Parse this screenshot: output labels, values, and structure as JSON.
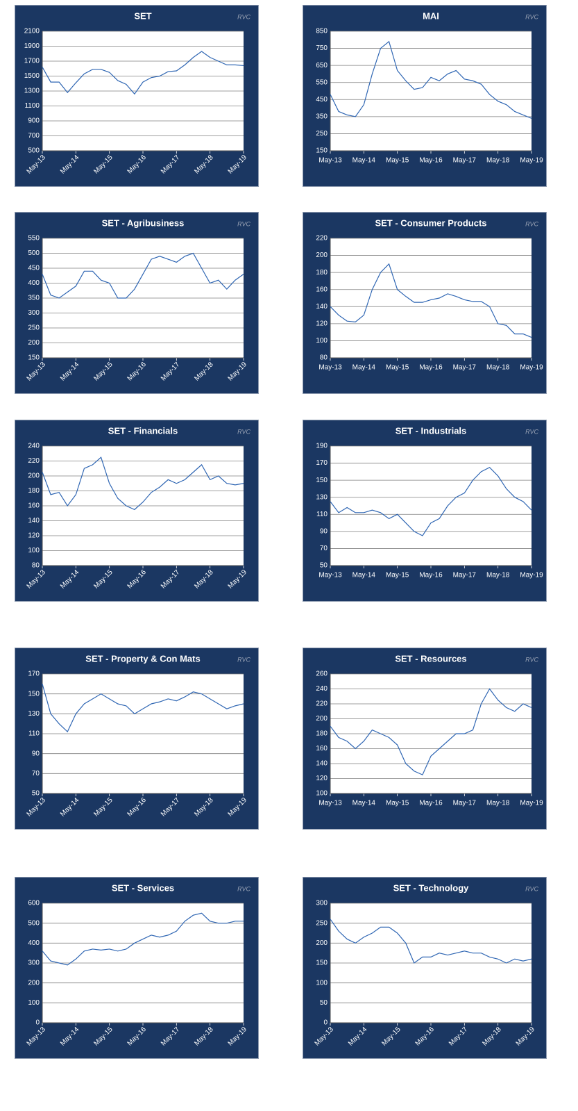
{
  "chart_data": [
    {
      "type": "line",
      "title": "SET",
      "source": "RVC",
      "rotate_xticks": true,
      "x": [
        "May-13",
        "Aug-13",
        "Nov-13",
        "Feb-14",
        "May-14",
        "Aug-14",
        "Nov-14",
        "Feb-15",
        "May-15",
        "Aug-15",
        "Nov-15",
        "Feb-16",
        "May-16",
        "Aug-16",
        "Nov-16",
        "Feb-17",
        "May-17",
        "Aug-17",
        "Nov-17",
        "Feb-18",
        "May-18",
        "Aug-18",
        "Nov-18",
        "Feb-19",
        "May-19"
      ],
      "xticks": [
        "May-13",
        "May-14",
        "May-15",
        "May-16",
        "May-17",
        "May-18",
        "May-19"
      ],
      "series": [
        {
          "name": "SET",
          "color": "#2f66b3",
          "values": [
            1620,
            1420,
            1420,
            1280,
            1410,
            1530,
            1590,
            1590,
            1550,
            1440,
            1390,
            1260,
            1420,
            1480,
            1500,
            1560,
            1570,
            1650,
            1750,
            1830,
            1750,
            1700,
            1650,
            1650,
            1640
          ]
        }
      ],
      "ylim": [
        500,
        2100
      ],
      "yticks": [
        500,
        700,
        900,
        1100,
        1300,
        1500,
        1700,
        1900,
        2100
      ],
      "grid": true
    },
    {
      "type": "line",
      "title": "MAI",
      "source": "RVC",
      "rotate_xticks": false,
      "x": [
        "May-13",
        "Aug-13",
        "Nov-13",
        "Feb-14",
        "May-14",
        "Aug-14",
        "Nov-14",
        "Feb-15",
        "May-15",
        "Aug-15",
        "Nov-15",
        "Feb-16",
        "May-16",
        "Aug-16",
        "Nov-16",
        "Feb-17",
        "May-17",
        "Aug-17",
        "Nov-17",
        "Feb-18",
        "May-18",
        "Aug-18",
        "Nov-18",
        "Feb-19",
        "May-19"
      ],
      "xticks": [
        "May-13",
        "May-14",
        "May-15",
        "May-16",
        "May-17",
        "May-18",
        "May-19"
      ],
      "series": [
        {
          "name": "MAI",
          "color": "#2f66b3",
          "values": [
            480,
            380,
            360,
            350,
            420,
            600,
            750,
            790,
            620,
            560,
            510,
            520,
            580,
            560,
            600,
            620,
            570,
            560,
            540,
            480,
            440,
            420,
            380,
            360,
            340
          ]
        }
      ],
      "ylim": [
        150,
        850
      ],
      "yticks": [
        150,
        250,
        350,
        450,
        550,
        650,
        750,
        850
      ],
      "grid": true
    },
    {
      "type": "line",
      "title": "SET - Agribusiness",
      "source": "RVC",
      "rotate_xticks": true,
      "x": [
        "May-13",
        "Aug-13",
        "Nov-13",
        "Feb-14",
        "May-14",
        "Aug-14",
        "Nov-14",
        "Feb-15",
        "May-15",
        "Aug-15",
        "Nov-15",
        "Feb-16",
        "May-16",
        "Aug-16",
        "Nov-16",
        "Feb-17",
        "May-17",
        "Aug-17",
        "Nov-17",
        "Feb-18",
        "May-18",
        "Aug-18",
        "Nov-18",
        "Feb-19",
        "May-19"
      ],
      "xticks": [
        "May-13",
        "May-14",
        "May-15",
        "May-16",
        "May-17",
        "May-18",
        "May-19"
      ],
      "series": [
        {
          "name": "SET - Agribusiness",
          "color": "#2f66b3",
          "values": [
            430,
            360,
            350,
            370,
            390,
            440,
            440,
            410,
            400,
            350,
            350,
            380,
            430,
            480,
            490,
            480,
            470,
            490,
            500,
            450,
            400,
            410,
            380,
            410,
            430
          ]
        }
      ],
      "ylim": [
        150,
        550
      ],
      "yticks": [
        150,
        200,
        250,
        300,
        350,
        400,
        450,
        500,
        550
      ],
      "grid": true
    },
    {
      "type": "line",
      "title": "SET - Consumer Products",
      "source": "RVC",
      "rotate_xticks": false,
      "x": [
        "May-13",
        "Aug-13",
        "Nov-13",
        "Feb-14",
        "May-14",
        "Aug-14",
        "Nov-14",
        "Feb-15",
        "May-15",
        "Aug-15",
        "Nov-15",
        "Feb-16",
        "May-16",
        "Aug-16",
        "Nov-16",
        "Feb-17",
        "May-17",
        "Aug-17",
        "Nov-17",
        "Feb-18",
        "May-18",
        "Aug-18",
        "Nov-18",
        "Feb-19",
        "May-19"
      ],
      "xticks": [
        "May-13",
        "May-14",
        "May-15",
        "May-16",
        "May-17",
        "May-18",
        "May-19"
      ],
      "series": [
        {
          "name": "SET - Consumer Products",
          "color": "#2f66b3",
          "values": [
            140,
            130,
            123,
            122,
            130,
            160,
            180,
            190,
            160,
            152,
            145,
            145,
            148,
            150,
            155,
            152,
            148,
            146,
            146,
            140,
            120,
            118,
            108,
            108,
            104
          ]
        }
      ],
      "ylim": [
        80,
        220
      ],
      "yticks": [
        80,
        100,
        120,
        140,
        160,
        180,
        200,
        220
      ],
      "grid": true
    },
    {
      "type": "line",
      "title": "SET - Financials",
      "source": "RVC",
      "rotate_xticks": true,
      "x": [
        "May-13",
        "Aug-13",
        "Nov-13",
        "Feb-14",
        "May-14",
        "Aug-14",
        "Nov-14",
        "Feb-15",
        "May-15",
        "Aug-15",
        "Nov-15",
        "Feb-16",
        "May-16",
        "Aug-16",
        "Nov-16",
        "Feb-17",
        "May-17",
        "Aug-17",
        "Nov-17",
        "Feb-18",
        "May-18",
        "Aug-18",
        "Nov-18",
        "Feb-19",
        "May-19"
      ],
      "xticks": [
        "May-13",
        "May-14",
        "May-15",
        "May-16",
        "May-17",
        "May-18",
        "May-19"
      ],
      "series": [
        {
          "name": "SET - Financials",
          "color": "#2f66b3",
          "values": [
            205,
            175,
            178,
            160,
            175,
            210,
            215,
            225,
            190,
            170,
            160,
            155,
            165,
            178,
            185,
            195,
            190,
            195,
            205,
            215,
            195,
            200,
            190,
            188,
            190
          ]
        }
      ],
      "ylim": [
        80,
        240
      ],
      "yticks": [
        80,
        100,
        120,
        140,
        160,
        180,
        200,
        220,
        240
      ],
      "grid": true
    },
    {
      "type": "line",
      "title": "SET - Industrials",
      "source": "RVC",
      "rotate_xticks": false,
      "x": [
        "May-13",
        "Aug-13",
        "Nov-13",
        "Feb-14",
        "May-14",
        "Aug-14",
        "Nov-14",
        "Feb-15",
        "May-15",
        "Aug-15",
        "Nov-15",
        "Feb-16",
        "May-16",
        "Aug-16",
        "Nov-16",
        "Feb-17",
        "May-17",
        "Aug-17",
        "Nov-17",
        "Feb-18",
        "May-18",
        "Aug-18",
        "Nov-18",
        "Feb-19",
        "May-19"
      ],
      "xticks": [
        "May-13",
        "May-14",
        "May-15",
        "May-16",
        "May-17",
        "May-18",
        "May-19"
      ],
      "series": [
        {
          "name": "SET - Industrials",
          "color": "#2f66b3",
          "values": [
            125,
            112,
            118,
            112,
            112,
            115,
            112,
            105,
            110,
            100,
            90,
            85,
            100,
            105,
            120,
            130,
            135,
            150,
            160,
            165,
            155,
            140,
            130,
            125,
            115
          ]
        }
      ],
      "ylim": [
        50,
        190
      ],
      "yticks": [
        50,
        70,
        90,
        110,
        130,
        150,
        170,
        190
      ],
      "grid": true
    },
    {
      "type": "line",
      "title": "SET - Property & Con Mats",
      "source": "RVC",
      "rotate_xticks": true,
      "x": [
        "May-13",
        "Aug-13",
        "Nov-13",
        "Feb-14",
        "May-14",
        "Aug-14",
        "Nov-14",
        "Feb-15",
        "May-15",
        "Aug-15",
        "Nov-15",
        "Feb-16",
        "May-16",
        "Aug-16",
        "Nov-16",
        "Feb-17",
        "May-17",
        "Aug-17",
        "Nov-17",
        "Feb-18",
        "May-18",
        "Aug-18",
        "Nov-18",
        "Feb-19",
        "May-19"
      ],
      "xticks": [
        "May-13",
        "May-14",
        "May-15",
        "May-16",
        "May-17",
        "May-18",
        "May-19"
      ],
      "series": [
        {
          "name": "SET - Property & Con Mats",
          "color": "#2f66b3",
          "values": [
            160,
            130,
            120,
            112,
            130,
            140,
            145,
            150,
            145,
            140,
            138,
            130,
            135,
            140,
            142,
            145,
            143,
            147,
            152,
            150,
            145,
            140,
            135,
            138,
            140
          ]
        }
      ],
      "ylim": [
        50,
        170
      ],
      "yticks": [
        50,
        70,
        90,
        110,
        130,
        150,
        170
      ],
      "grid": true
    },
    {
      "type": "line",
      "title": "SET - Resources",
      "source": "RVC",
      "rotate_xticks": false,
      "x": [
        "May-13",
        "Aug-13",
        "Nov-13",
        "Feb-14",
        "May-14",
        "Aug-14",
        "Nov-14",
        "Feb-15",
        "May-15",
        "Aug-15",
        "Nov-15",
        "Feb-16",
        "May-16",
        "Aug-16",
        "Nov-16",
        "Feb-17",
        "May-17",
        "Aug-17",
        "Nov-17",
        "Feb-18",
        "May-18",
        "Aug-18",
        "Nov-18",
        "Feb-19",
        "May-19"
      ],
      "xticks": [
        "May-13",
        "May-14",
        "May-15",
        "May-16",
        "May-17",
        "May-18",
        "May-19"
      ],
      "series": [
        {
          "name": "SET - Resources",
          "color": "#2f66b3",
          "values": [
            190,
            175,
            170,
            160,
            170,
            185,
            180,
            175,
            165,
            140,
            130,
            125,
            150,
            160,
            170,
            180,
            180,
            185,
            220,
            240,
            225,
            215,
            210,
            220,
            215
          ]
        }
      ],
      "ylim": [
        100,
        260
      ],
      "yticks": [
        100,
        120,
        140,
        160,
        180,
        200,
        220,
        240,
        260
      ],
      "grid": true
    },
    {
      "type": "line",
      "title": "SET - Services",
      "source": "RVC",
      "rotate_xticks": true,
      "x": [
        "May-13",
        "Aug-13",
        "Nov-13",
        "Feb-14",
        "May-14",
        "Aug-14",
        "Nov-14",
        "Feb-15",
        "May-15",
        "Aug-15",
        "Nov-15",
        "Feb-16",
        "May-16",
        "Aug-16",
        "Nov-16",
        "Feb-17",
        "May-17",
        "Aug-17",
        "Nov-17",
        "Feb-18",
        "May-18",
        "Aug-18",
        "Nov-18",
        "Feb-19",
        "May-19"
      ],
      "xticks": [
        "May-13",
        "May-14",
        "May-15",
        "May-16",
        "May-17",
        "May-18",
        "May-19"
      ],
      "series": [
        {
          "name": "SET - Services",
          "color": "#2f66b3",
          "values": [
            360,
            310,
            300,
            290,
            320,
            360,
            370,
            365,
            370,
            360,
            370,
            400,
            420,
            440,
            430,
            440,
            460,
            510,
            540,
            550,
            510,
            500,
            500,
            510,
            510
          ]
        }
      ],
      "ylim": [
        0,
        600
      ],
      "yticks": [
        0,
        100,
        200,
        300,
        400,
        500,
        600
      ],
      "grid": true
    },
    {
      "type": "line",
      "title": "SET - Technology",
      "source": "RVC",
      "rotate_xticks": true,
      "x": [
        "May-13",
        "Aug-13",
        "Nov-13",
        "Feb-14",
        "May-14",
        "Aug-14",
        "Nov-14",
        "Feb-15",
        "May-15",
        "Aug-15",
        "Nov-15",
        "Feb-16",
        "May-16",
        "Aug-16",
        "Nov-16",
        "Feb-17",
        "May-17",
        "Aug-17",
        "Nov-17",
        "Feb-18",
        "May-18",
        "Aug-18",
        "Nov-18",
        "Feb-19",
        "May-19"
      ],
      "xticks": [
        "May-13",
        "May-14",
        "May-15",
        "May-16",
        "May-17",
        "May-18",
        "May-19"
      ],
      "series": [
        {
          "name": "SET - Technology",
          "color": "#2f66b3",
          "values": [
            260,
            230,
            210,
            200,
            215,
            225,
            240,
            240,
            225,
            200,
            150,
            165,
            165,
            175,
            170,
            175,
            180,
            175,
            175,
            165,
            160,
            150,
            160,
            155,
            160
          ]
        }
      ],
      "ylim": [
        0,
        300
      ],
      "yticks": [
        0,
        50,
        100,
        150,
        200,
        250,
        300
      ],
      "grid": true
    }
  ]
}
